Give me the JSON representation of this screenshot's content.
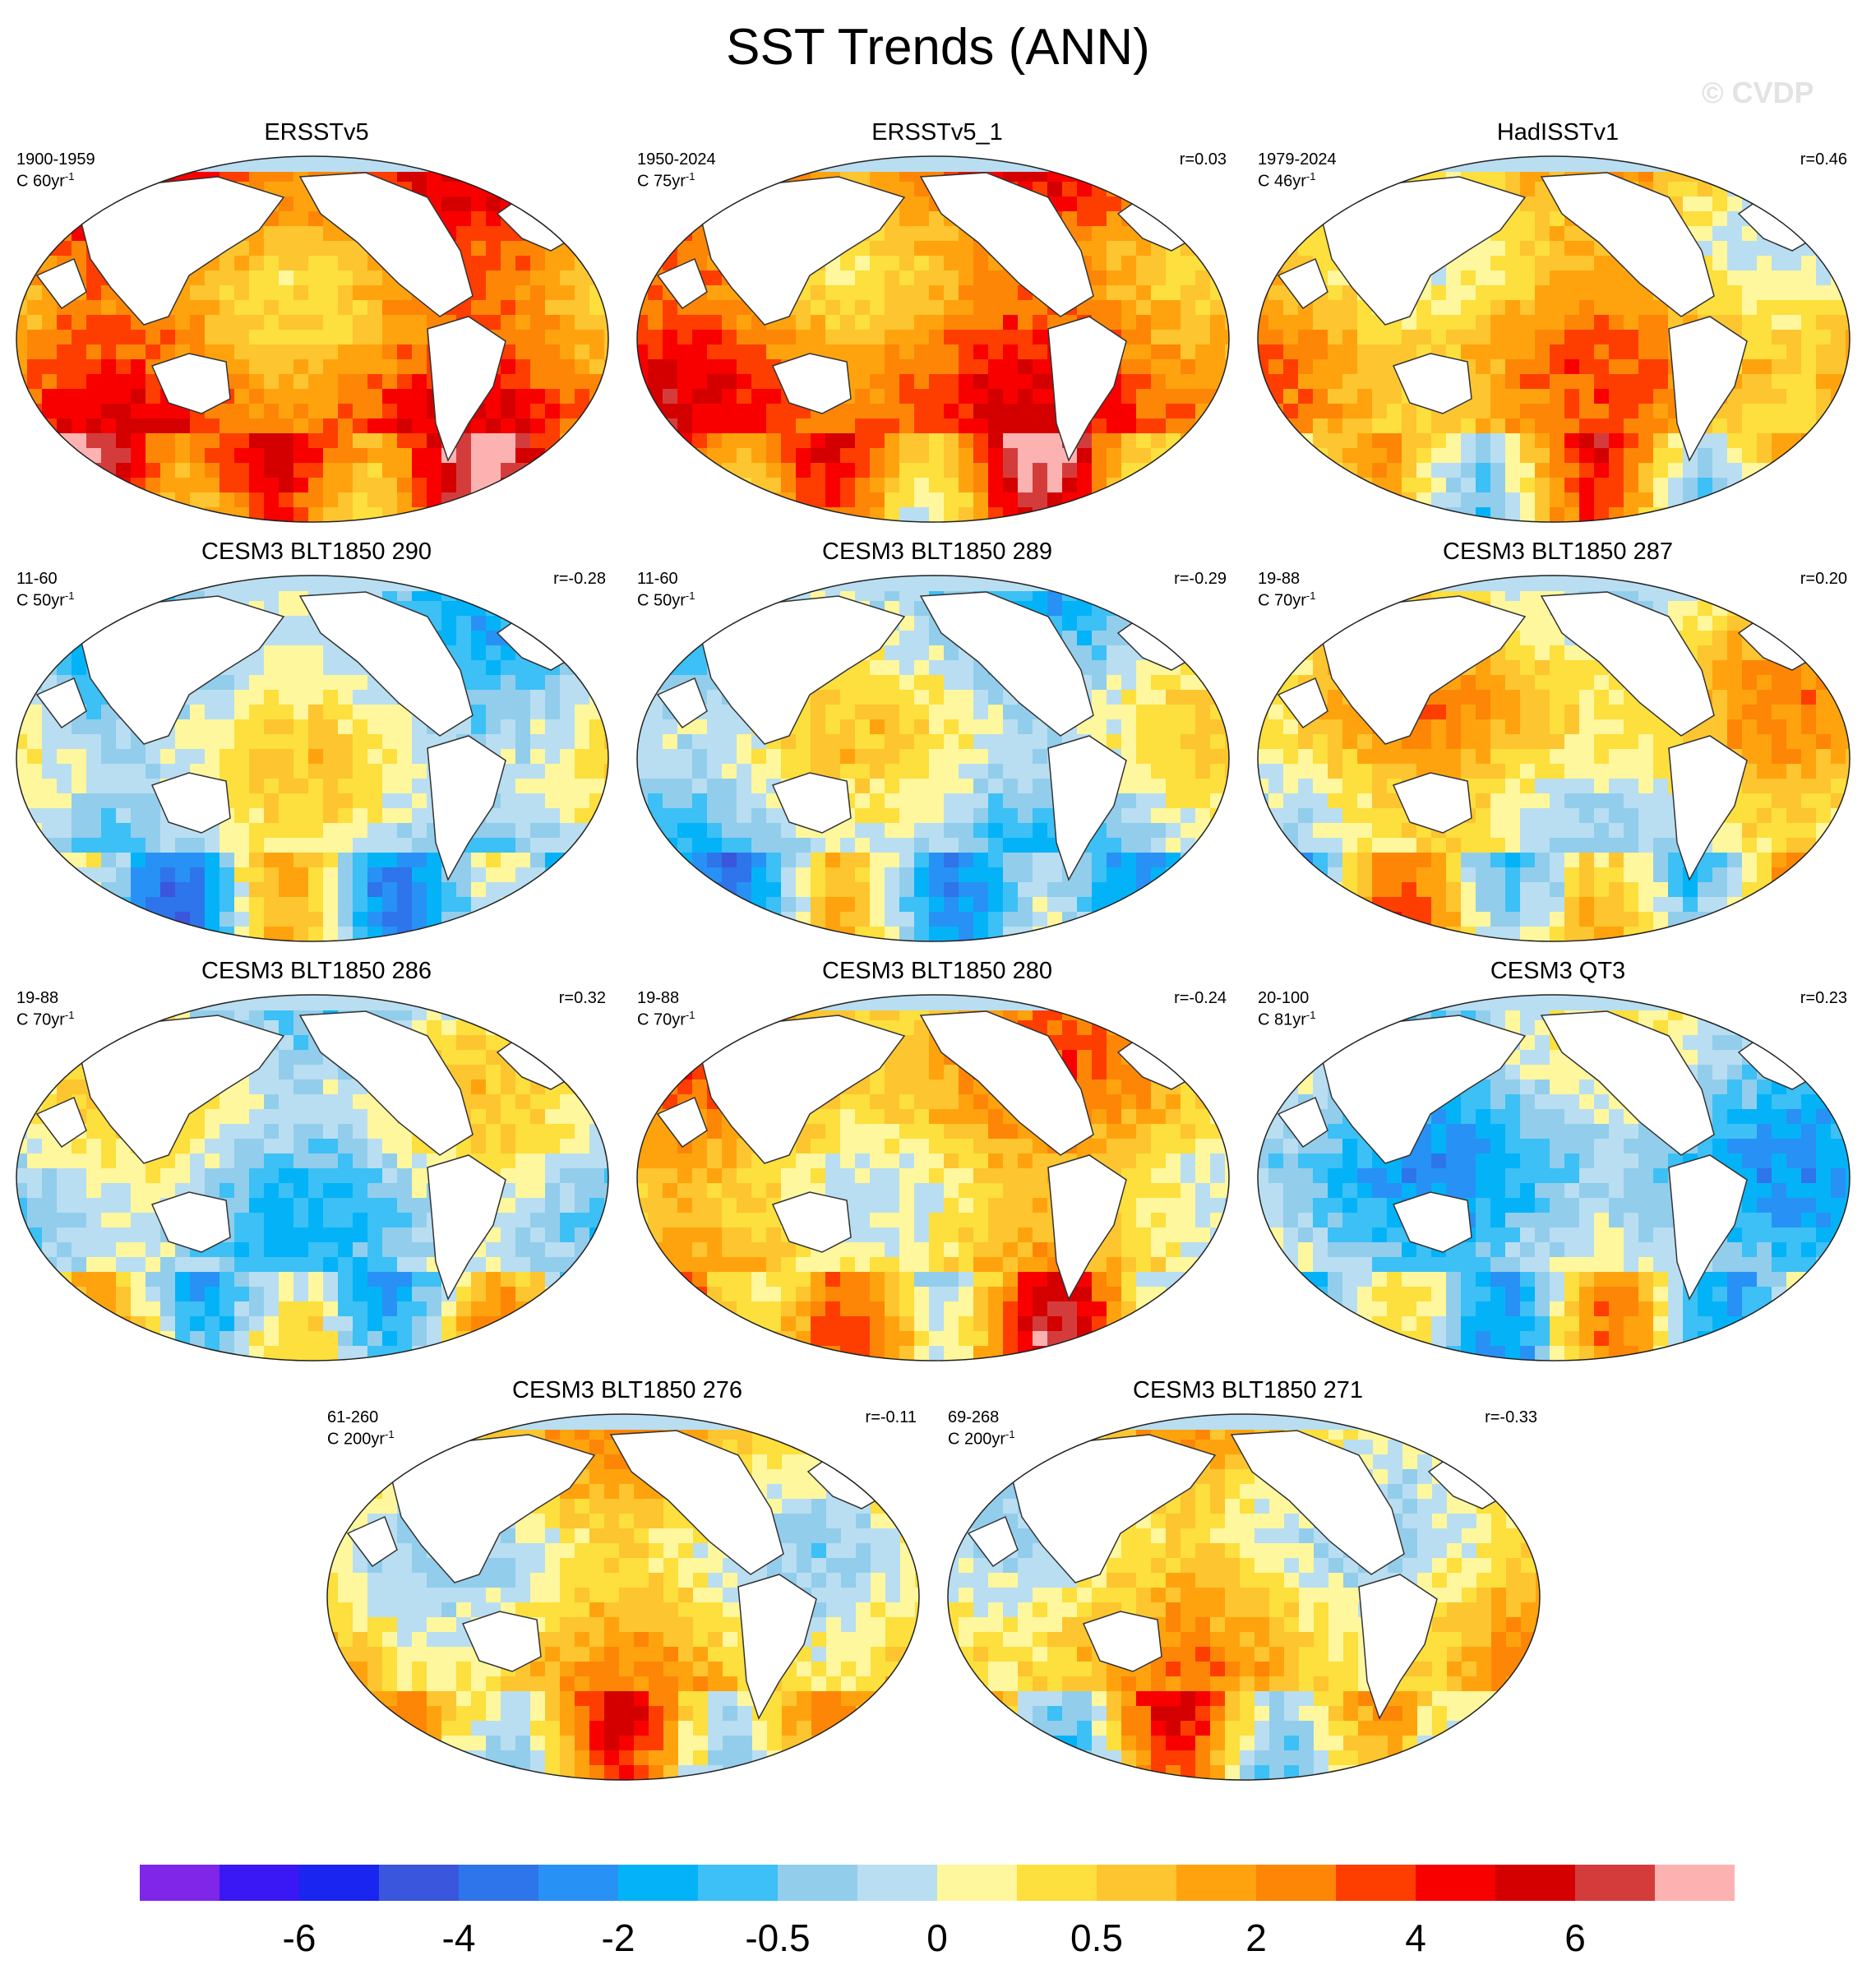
{
  "figure_title": "SST Trends (ANN)",
  "watermark": "© CVDP",
  "chart_data": {
    "type": "heatmap",
    "title": "SST Trends (ANN)",
    "projection": "Robinson (Pacific-centered)",
    "variable": "SST trend",
    "colorbar": {
      "labels": [
        "-6",
        "-4",
        "-2",
        "-0.5",
        "0",
        "0.5",
        "2",
        "4",
        "6"
      ],
      "colors": [
        "#7f26e8",
        "#3a18f5",
        "#1a25f0",
        "#3a56dc",
        "#2e74ea",
        "#2891f5",
        "#04b3f7",
        "#3cc0f5",
        "#92cdec",
        "#b9def1",
        "#fef79d",
        "#fddf3d",
        "#fdc52f",
        "#fea30e",
        "#fe8607",
        "#fe3d01",
        "#f80000",
        "#d40000",
        "#d43c3c",
        "#fdb2b2"
      ]
    },
    "panels": [
      {
        "title": "ERSSTv5",
        "period": "1900-1959",
        "units": "C 60yr",
        "exponent": "-1",
        "r": ""
      },
      {
        "title": "ERSSTv5_1",
        "period": "1950-2024",
        "units": "C 75yr",
        "exponent": "-1",
        "r": "r=0.03"
      },
      {
        "title": "HadISSTv1",
        "period": "1979-2024",
        "units": "C 46yr",
        "exponent": "-1",
        "r": "r=0.46"
      },
      {
        "title": "CESM3 BLT1850 290",
        "period": "11-60",
        "units": "C 50yr",
        "exponent": "-1",
        "r": "r=-0.28"
      },
      {
        "title": "CESM3 BLT1850 289",
        "period": "11-60",
        "units": "C 50yr",
        "exponent": "-1",
        "r": "r=-0.29"
      },
      {
        "title": "CESM3 BLT1850 287",
        "period": "19-88",
        "units": "C 70yr",
        "exponent": "-1",
        "r": "r=0.20"
      },
      {
        "title": "CESM3 BLT1850 286",
        "period": "19-88",
        "units": "C 70yr",
        "exponent": "-1",
        "r": "r=0.32"
      },
      {
        "title": "CESM3 BLT1850 280",
        "period": "19-88",
        "units": "C 70yr",
        "exponent": "-1",
        "r": "r=-0.24"
      },
      {
        "title": "CESM3 QT3",
        "period": "20-100",
        "units": "C 81yr",
        "exponent": "-1",
        "r": "r=0.23"
      },
      {
        "title": "CESM3 BLT1850 276",
        "period": "61-260",
        "units": "C 200yr",
        "exponent": "-1",
        "r": "r=-0.11"
      },
      {
        "title": "CESM3 BLT1850 271",
        "period": "69-268",
        "units": "C 200yr",
        "exponent": "-1",
        "r": "r=-0.33"
      }
    ]
  }
}
